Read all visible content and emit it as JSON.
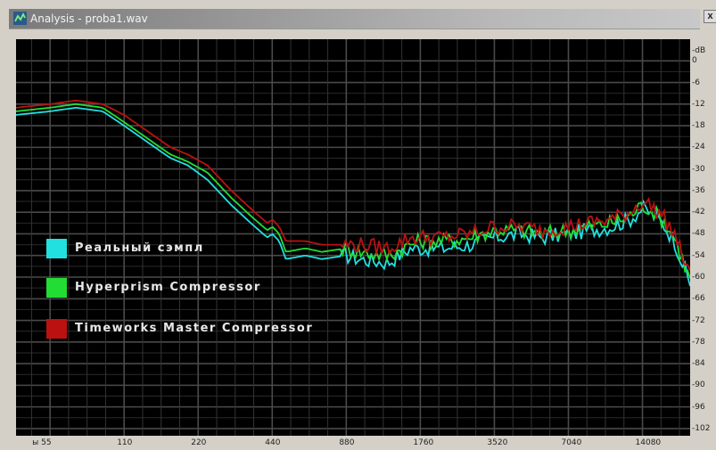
{
  "window": {
    "title": "Analysis - proba1.wav",
    "close_label": "x"
  },
  "colors": {
    "plot_background": "#000000",
    "grid": "#4a4a4a",
    "real_sample": "#22e0e0",
    "hyperprism": "#22dd33",
    "timeworks": "#bb1111"
  },
  "chart_data": {
    "type": "line",
    "y_unit": "dB",
    "x_scale": "log",
    "x_ticks": [
      "ы 55",
      "110",
      "220",
      "440",
      "880",
      "1760",
      "3520",
      "7040",
      "14080"
    ],
    "y_ticks": [
      "-dB",
      "0",
      "-6",
      "-12",
      "-18",
      "-24",
      "-30",
      "-36",
      "-42",
      "-48",
      "-54",
      "-60",
      "-66",
      "-72",
      "-78",
      "-84",
      "-90",
      "-96",
      "-102"
    ],
    "ylim": [
      -104,
      6
    ],
    "xlim": [
      40,
      22000
    ],
    "grid": true,
    "legend_position": "left",
    "series": [
      {
        "name": "Реальный сэмпл",
        "color": "#22e0e0",
        "x": [
          40,
          55,
          70,
          90,
          110,
          140,
          170,
          200,
          240,
          300,
          360,
          420,
          440,
          470,
          500,
          600,
          700,
          880,
          1000,
          1300,
          1600,
          1760,
          2200,
          2800,
          3520,
          4500,
          5500,
          7040,
          8500,
          10500,
          12500,
          14080,
          15000,
          17000,
          19000,
          22000
        ],
        "y": [
          -15,
          -14,
          -13,
          -14,
          -18,
          -23,
          -27,
          -29,
          -33,
          -40,
          -45,
          -49,
          -48,
          -50,
          -55,
          -54,
          -55,
          -54,
          -55,
          -56,
          -52,
          -52,
          -52,
          -51,
          -49,
          -48,
          -49,
          -48,
          -47,
          -46,
          -44,
          -41,
          -42,
          -45,
          -50,
          -62
        ]
      },
      {
        "name": "Hyperprism Compressor",
        "color": "#22dd33",
        "x": [
          40,
          55,
          70,
          90,
          110,
          140,
          170,
          200,
          240,
          300,
          360,
          420,
          440,
          470,
          500,
          600,
          700,
          880,
          1000,
          1300,
          1600,
          1760,
          2200,
          2800,
          3520,
          4500,
          5500,
          7040,
          8500,
          10500,
          12500,
          14080,
          15000,
          17000,
          19000,
          22000
        ],
        "y": [
          -14,
          -13,
          -12,
          -13,
          -17,
          -22,
          -26,
          -28,
          -31,
          -38,
          -43,
          -47,
          -46,
          -48,
          -53,
          -52,
          -53,
          -52,
          -53,
          -54,
          -51,
          -50,
          -50,
          -49,
          -47,
          -47,
          -48,
          -47,
          -46,
          -45,
          -43,
          -40,
          -41,
          -44,
          -49,
          -61
        ]
      },
      {
        "name": "Timeworks Master Compressor",
        "color": "#bb1111",
        "x": [
          40,
          55,
          70,
          90,
          110,
          140,
          170,
          200,
          240,
          300,
          360,
          420,
          440,
          470,
          500,
          600,
          700,
          880,
          1000,
          1300,
          1600,
          1760,
          2200,
          2800,
          3520,
          4500,
          5500,
          7040,
          8500,
          10500,
          12500,
          14080,
          15000,
          17000,
          19000,
          22000
        ],
        "y": [
          -13,
          -12,
          -11,
          -12,
          -15,
          -20,
          -24,
          -26,
          -29,
          -36,
          -41,
          -45,
          -44,
          -46,
          -50,
          -50,
          -51,
          -51,
          -51,
          -52,
          -49,
          -49,
          -49,
          -48,
          -46,
          -46,
          -47,
          -46,
          -45,
          -44,
          -42,
          -39,
          -40,
          -43,
          -48,
          -60
        ]
      }
    ]
  }
}
